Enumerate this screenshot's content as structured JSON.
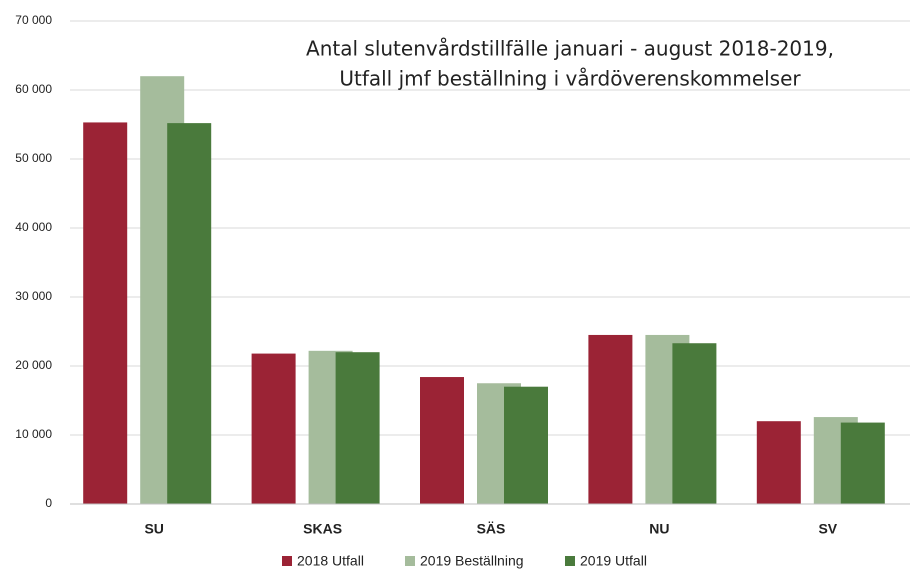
{
  "chart_data": {
    "type": "bar",
    "title": [
      "Antal slutenvårdstillfälle januari - august 2018-2019,",
      "Utfall jmf beställning i vårdöverenskommelser"
    ],
    "categories": [
      "SU",
      "SKAS",
      "SÄS",
      "NU",
      "SV"
    ],
    "series": [
      {
        "name": "2018 Utfall",
        "color": "#9b2335",
        "values": [
          55300,
          21800,
          18400,
          24500,
          12000
        ]
      },
      {
        "name": "2019 Beställning",
        "color": "#a5bc9c",
        "values": [
          62000,
          22200,
          17500,
          24500,
          12600
        ]
      },
      {
        "name": "2019 Utfall",
        "color": "#4a7a3c",
        "values": [
          55200,
          22000,
          17000,
          23300,
          11800
        ]
      }
    ],
    "ylim": [
      0,
      70000
    ],
    "yticks": [
      0,
      {
        "value": 10000,
        "label": "10 000"
      },
      {
        "value": 20000,
        "label": "20 000"
      },
      {
        "value": 30000,
        "label": "30 000"
      },
      {
        "value": 40000,
        "label": "40 000"
      },
      {
        "value": 50000,
        "label": "50 000"
      },
      {
        "value": 60000,
        "label": "60 000"
      },
      {
        "value": 70000,
        "label": "70 000"
      }
    ],
    "grid": true,
    "legend": "bottom"
  }
}
